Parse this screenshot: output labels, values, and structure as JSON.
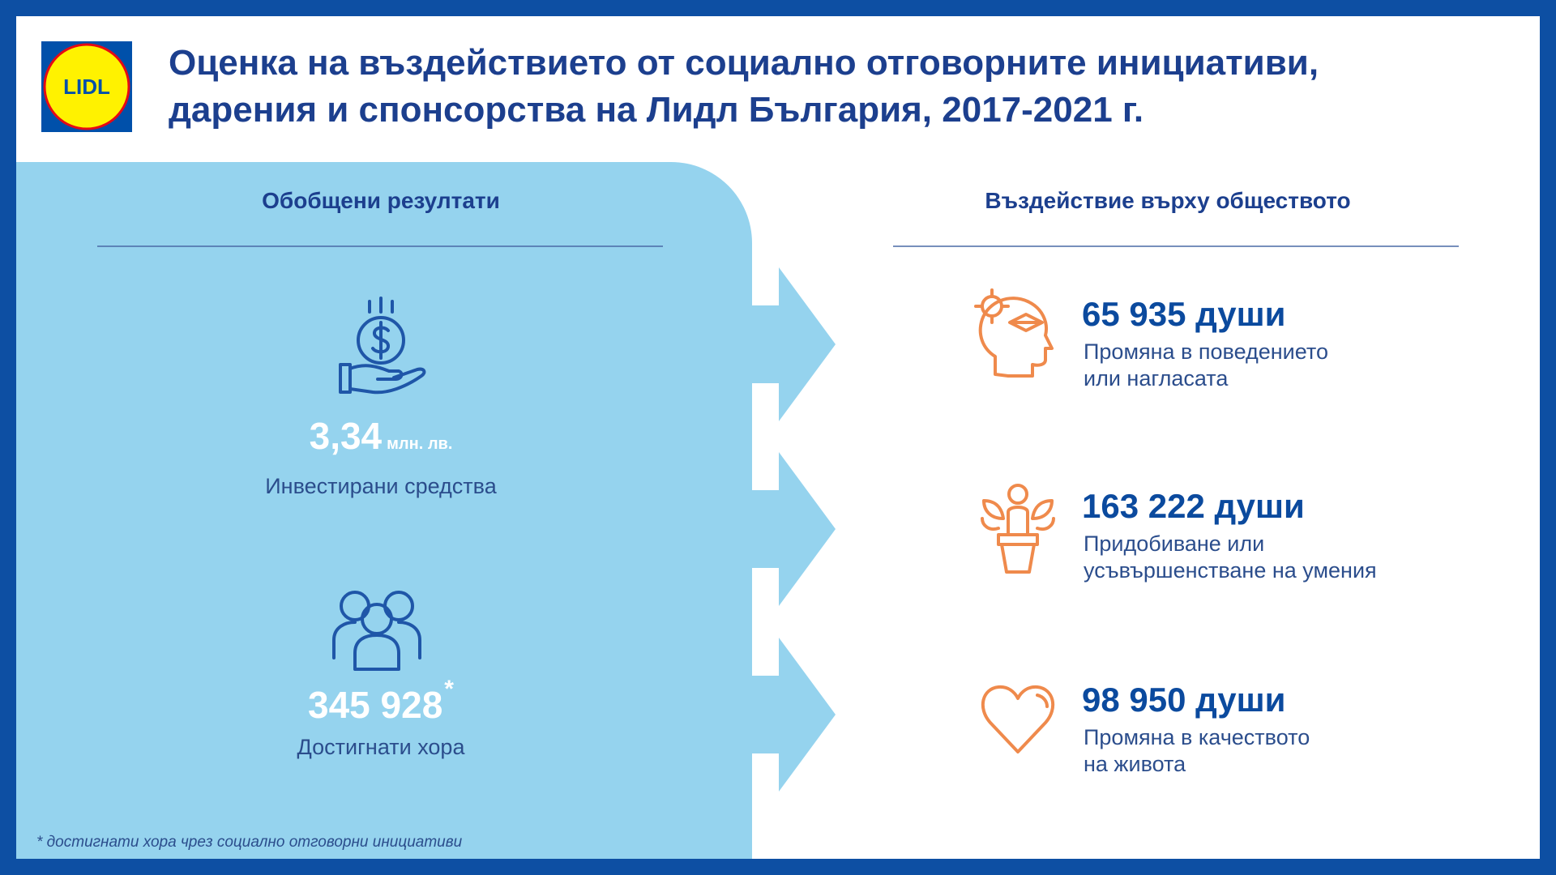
{
  "header": {
    "logo": "LIDL",
    "title": [
      "Оценка на въздействието от социално отговорните инициативи,",
      "дарения и спонсорства на Лидл България, 2017-2021 г."
    ]
  },
  "summary": {
    "heading": "Обобщени резултати",
    "items": [
      {
        "value": "3,34",
        "unit": "млн. лв.",
        "label": "Инвестирани средства"
      },
      {
        "value": "345 928",
        "mark": "*",
        "label": "Достигнати хора"
      }
    ]
  },
  "impact": {
    "heading": "Въздействие върху обществото",
    "items": [
      {
        "value": "65 935 души",
        "label": [
          "Промяна в поведението",
          "или нагласата"
        ]
      },
      {
        "value": "163 222 души",
        "label": [
          "Придобиване или",
          "усъвършенстване на умения"
        ]
      },
      {
        "value": "98 950 души",
        "label": [
          "Промяна в качеството",
          "на живота"
        ]
      }
    ]
  },
  "footnote": "* достигнати хора чрез социално отговорни инициативи"
}
